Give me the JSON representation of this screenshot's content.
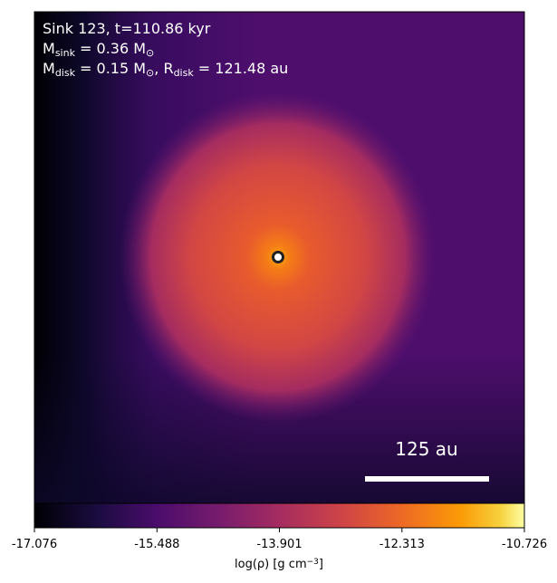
{
  "chart_data": {
    "type": "image",
    "annotations": [
      [
        "Sink 123, t=110.86 kyr"
      ],
      [
        "M",
        "sink",
        " = 0.36 M",
        "⊙"
      ],
      [
        "M",
        "disk",
        " = 0.15 M",
        "⊙",
        ", R",
        "disk",
        " = 121.48 au"
      ]
    ],
    "scale_bar_label": "125 au",
    "colorbar": {
      "clim": [
        -17.076,
        -10.726
      ],
      "ticks": [
        -17.076,
        -15.488,
        -13.901,
        -12.313,
        -10.726
      ],
      "label": [
        "log(ρ) [g cm",
        "−3",
        "]"
      ]
    }
  }
}
